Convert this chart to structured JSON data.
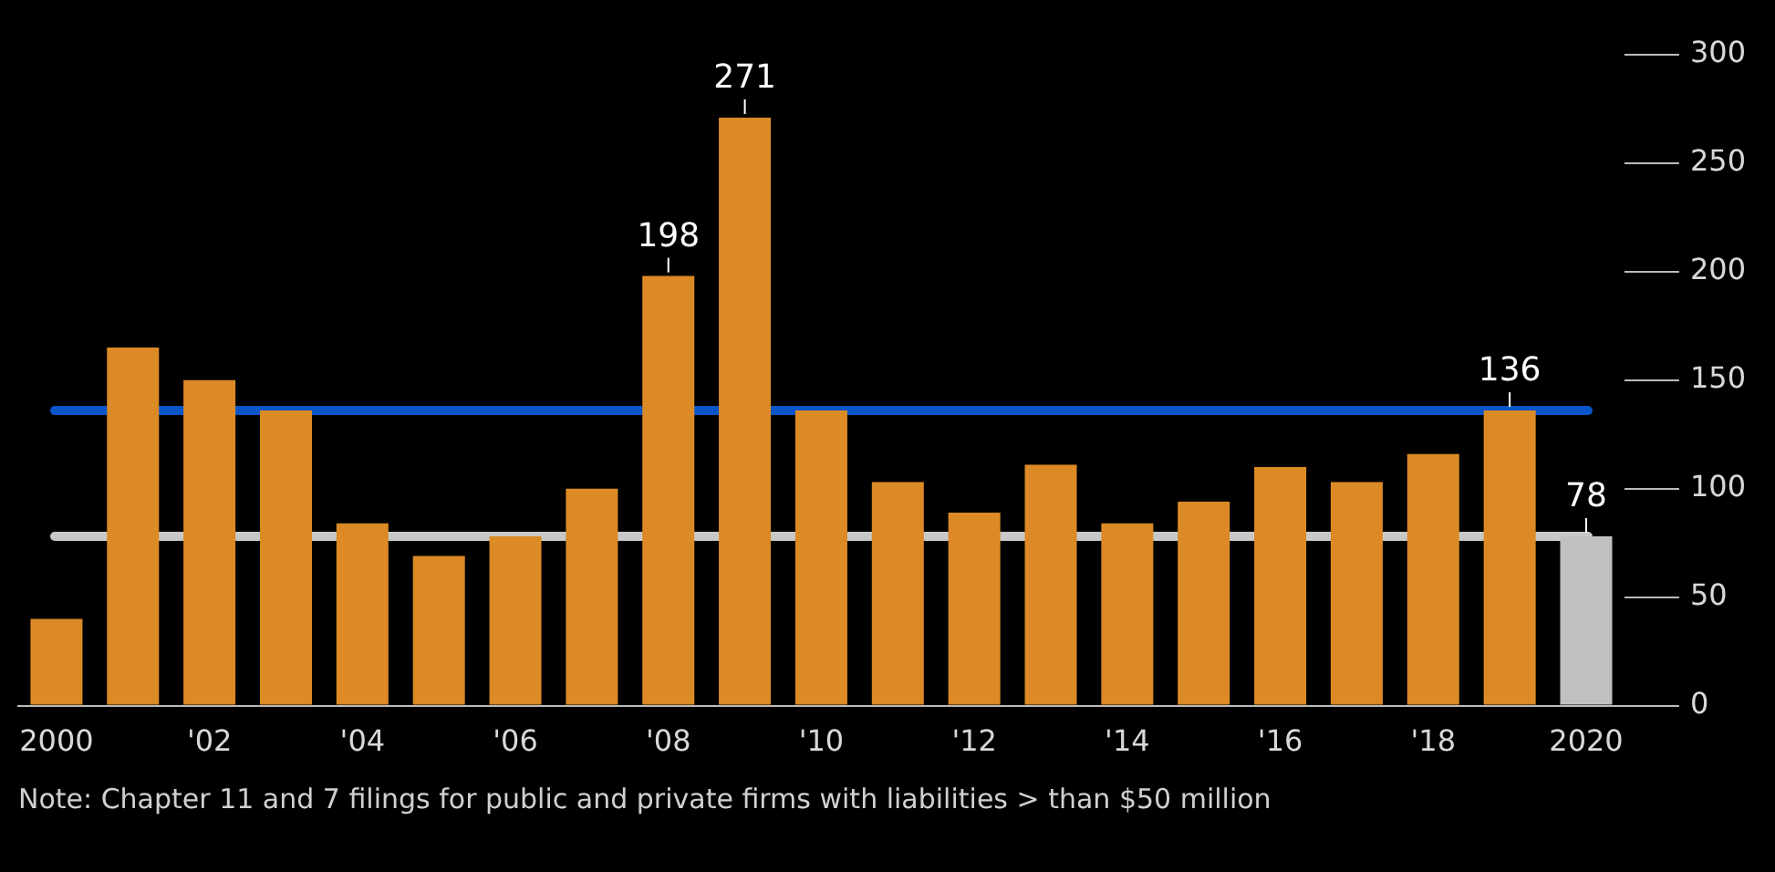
{
  "chart_data": {
    "type": "bar",
    "categories": [
      "2000",
      null,
      "'02",
      null,
      "'04",
      null,
      "'06",
      null,
      "'08",
      null,
      "'10",
      null,
      "'12",
      null,
      "'14",
      null,
      "'16",
      null,
      "'18",
      null,
      "2020"
    ],
    "values": [
      40,
      165,
      150,
      136,
      84,
      69,
      78,
      100,
      198,
      271,
      136,
      103,
      89,
      111,
      84,
      94,
      110,
      103,
      116,
      136,
      78
    ],
    "colors": [
      "#db8a26",
      "#db8a26",
      "#db8a26",
      "#db8a26",
      "#db8a26",
      "#db8a26",
      "#db8a26",
      "#db8a26",
      "#db8a26",
      "#db8a26",
      "#db8a26",
      "#db8a26",
      "#db8a26",
      "#db8a26",
      "#db8a26",
      "#db8a26",
      "#db8a26",
      "#db8a26",
      "#db8a26",
      "#db8a26",
      "#c0c0c0"
    ],
    "value_labels": [
      null,
      null,
      null,
      null,
      null,
      null,
      null,
      null,
      "198",
      "271",
      null,
      null,
      null,
      null,
      null,
      null,
      null,
      null,
      null,
      "136",
      "78"
    ],
    "ylim": [
      0,
      300
    ],
    "yticks": [
      0,
      50,
      100,
      150,
      200,
      250,
      300
    ],
    "ref_lines": [
      {
        "axis": "y",
        "value": 136,
        "color": "#0a55c8"
      },
      {
        "axis": "y",
        "value": 78,
        "color": "#c8c8c8"
      }
    ],
    "grid": false,
    "legend": false,
    "annotations": [
      "Note: Chapter 11 and 7 filings for public and private firms with liabilities > than $50 million"
    ]
  }
}
